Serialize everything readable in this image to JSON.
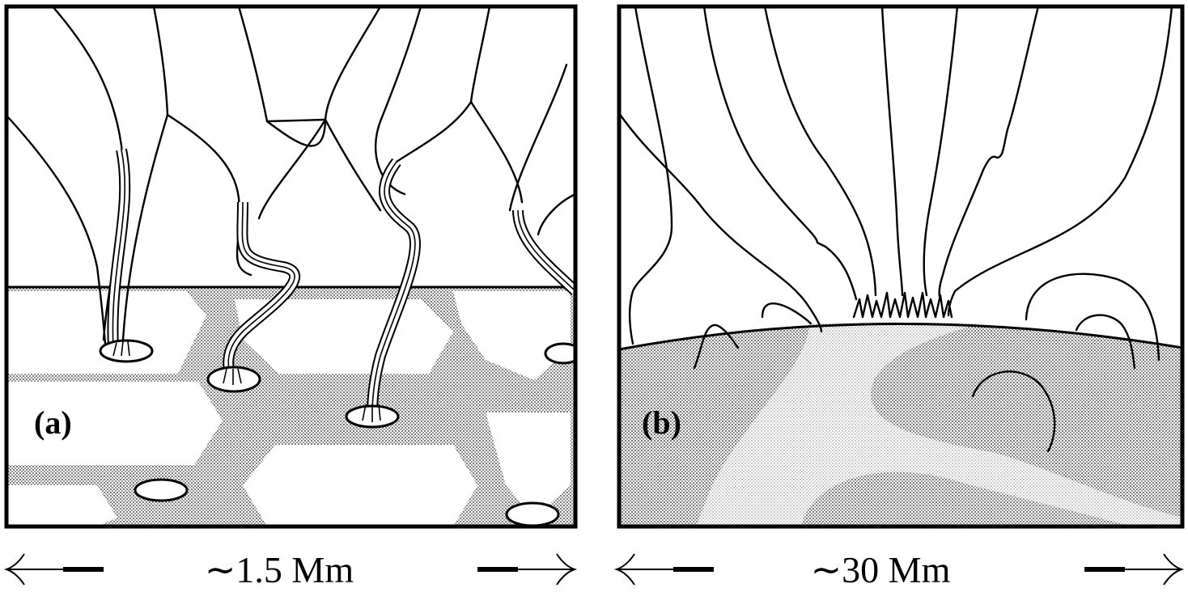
{
  "panels": [
    {
      "id": "a",
      "label": "(a)",
      "scale": "∼1.5 Mm"
    },
    {
      "id": "b",
      "label": "(b)",
      "scale": "∼30 Mm"
    }
  ],
  "colors": {
    "ink": "#000000",
    "paper": "#ffffff",
    "shade_dark": "#bdbdbd",
    "shade_light": "#e2e2e2"
  }
}
